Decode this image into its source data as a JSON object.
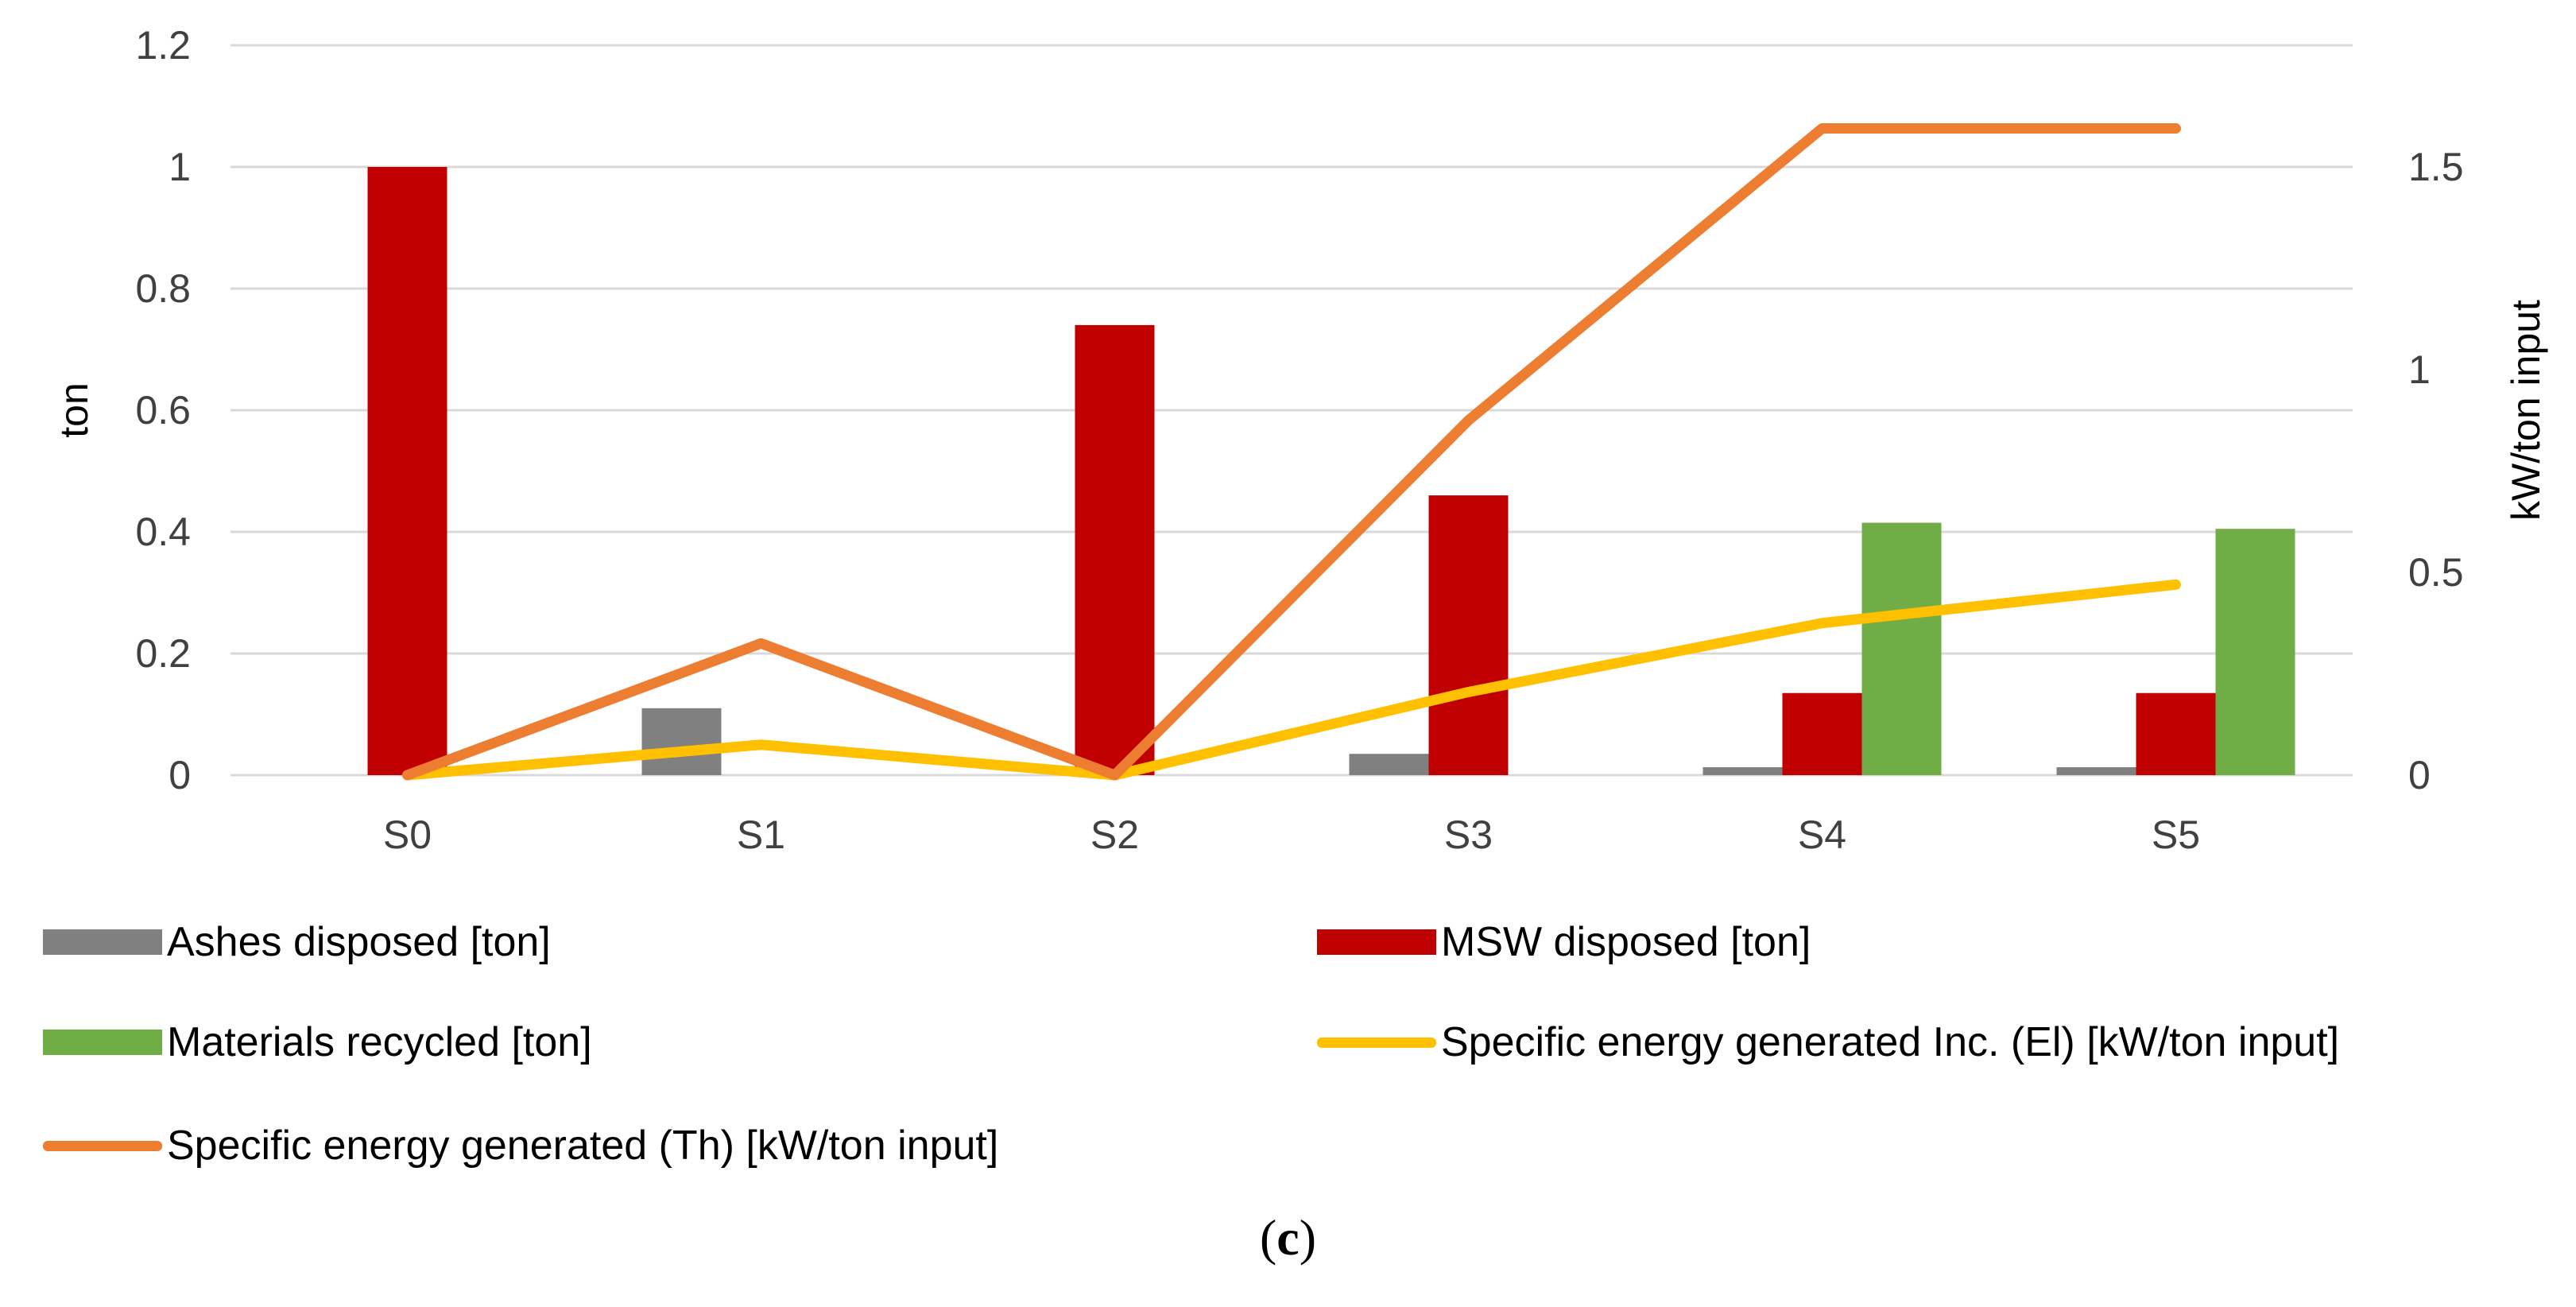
{
  "chart_data": {
    "type": "bar+line",
    "categories": [
      "S0",
      "S1",
      "S2",
      "S3",
      "S4",
      "S5"
    ],
    "y_left": {
      "label": "ton",
      "min": 0,
      "max": 1.2,
      "ticks": [
        "0",
        "0.2",
        "0.4",
        "0.6",
        "0.8",
        "1",
        "1.2"
      ]
    },
    "y_right": {
      "label": "kW/ton input",
      "min": 0,
      "max": 1.8,
      "ticks": [
        "0",
        "0.5",
        "1",
        "1.5"
      ]
    },
    "grid": true,
    "bar_series": [
      {
        "name": "Ashes disposed [ton]",
        "color": "#808080",
        "values": [
          0,
          0.11,
          0,
          0.035,
          0.013,
          0.013
        ]
      },
      {
        "name": "MSW disposed [ton]",
        "color": "#C00000",
        "values": [
          1.0,
          0,
          0.74,
          0.46,
          0.135,
          0.135
        ]
      },
      {
        "name": "Materials recycled [ton]",
        "color": "#70AD47",
        "values": [
          0,
          0,
          0,
          0,
          0.415,
          0.405
        ]
      }
    ],
    "line_series": [
      {
        "name": "Specific energy generated Inc. (El) [kW/ton input]",
        "color": "#FFC000",
        "axis": "right",
        "values": [
          0,
          0.075,
          0,
          0.205,
          0.375,
          0.47
        ]
      },
      {
        "name": "Specific energy generated (Th) [kW/ton input]",
        "color": "#ED7D31",
        "axis": "right",
        "values": [
          0,
          0.325,
          0,
          0.875,
          1.595,
          1.595
        ]
      }
    ],
    "legend_position": "bottom"
  },
  "legend": {
    "ashes": "Ashes disposed [ton]",
    "msw": "MSW disposed [ton]",
    "recycled": "Materials recycled [ton]",
    "el": "Specific energy generated Inc. (El) [kW/ton input]",
    "th": "Specific energy generated (Th) [kW/ton input]"
  },
  "caption": {
    "open": "(",
    "letter": "c",
    "close": ")"
  }
}
